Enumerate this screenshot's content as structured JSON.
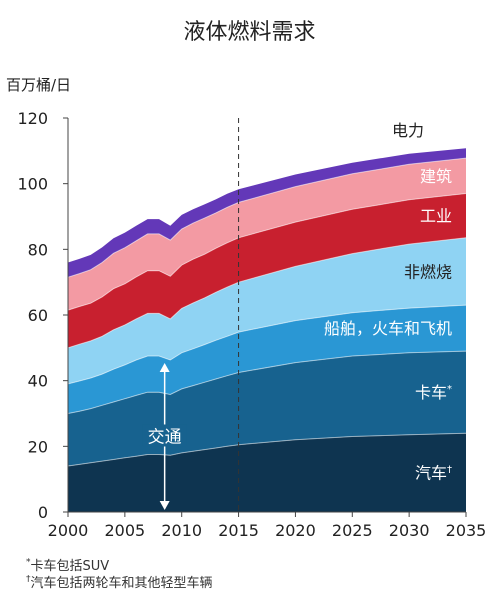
{
  "chart_data": {
    "type": "area",
    "title": "液体燃料需求",
    "ylabel": "百万桶/日",
    "xlabel": "",
    "ylim": [
      0,
      120
    ],
    "xlim": [
      2000,
      2035
    ],
    "x_ticks": [
      2000,
      2005,
      2010,
      2015,
      2020,
      2025,
      2030,
      2035
    ],
    "y_ticks": [
      0,
      20,
      40,
      60,
      80,
      100,
      120
    ],
    "forecast_divider_year": 2015,
    "x": [
      2000,
      2001,
      2002,
      2003,
      2004,
      2005,
      2006,
      2007,
      2008,
      2009,
      2010,
      2011,
      2012,
      2013,
      2014,
      2015,
      2020,
      2025,
      2030,
      2035
    ],
    "series": [
      {
        "name": "汽车",
        "color": "#0e3450",
        "values": [
          14,
          14.5,
          15,
          15.5,
          16,
          16.5,
          17,
          17.5,
          17.5,
          17.3,
          18,
          18.5,
          19,
          19.5,
          20,
          20.5,
          22,
          23,
          23.5,
          24
        ]
      },
      {
        "name": "卡车",
        "color": "#17628f",
        "values": [
          16,
          16.2,
          16.5,
          17,
          17.5,
          18,
          18.5,
          19,
          19,
          18.5,
          19.5,
          20,
          20.5,
          21,
          21.5,
          22,
          23.5,
          24.5,
          25,
          25
        ]
      },
      {
        "name": "船舶，火车和飞机",
        "color": "#2a97d4",
        "values": [
          9,
          9.2,
          9.3,
          9.5,
          10,
          10.3,
          10.8,
          11,
          11,
          10.5,
          11,
          11.2,
          11.5,
          11.8,
          12,
          12.3,
          12.8,
          13.2,
          13.6,
          14
        ]
      },
      {
        "name": "非燃烧",
        "color": "#8fd3f3",
        "values": [
          11,
          11.2,
          11.3,
          11.5,
          12,
          12.2,
          12.5,
          13,
          13,
          12.5,
          13.5,
          14,
          14.2,
          14.6,
          15,
          15.2,
          16.5,
          18,
          19.5,
          20.5
        ]
      },
      {
        "name": "工业",
        "color": "#c8202f",
        "values": [
          11.5,
          11.5,
          11.5,
          12,
          12.5,
          12.5,
          12.8,
          13,
          13,
          13,
          13.2,
          13.3,
          13.3,
          13.4,
          13.5,
          13.5,
          13.5,
          13.5,
          13.5,
          13.5
        ]
      },
      {
        "name": "建筑",
        "color": "#f39aa3",
        "values": [
          10,
          10,
          10.2,
          10.5,
          10.8,
          11,
          11,
          11.2,
          11.2,
          11,
          11,
          11,
          11,
          10.8,
          10.8,
          10.8,
          10.8,
          10.8,
          10.8,
          10.8
        ]
      },
      {
        "name": "电力",
        "color": "#6338b8",
        "values": [
          4.5,
          4.5,
          4.5,
          4.6,
          4.6,
          4.6,
          4.6,
          4.5,
          4.5,
          4.4,
          4.3,
          4.2,
          4.2,
          4.1,
          4.1,
          4,
          3.7,
          3.4,
          3.2,
          3
        ]
      }
    ],
    "annotations": [
      {
        "text": "交通",
        "type": "double-arrow",
        "from": 0,
        "to": 46,
        "year": 2008.5
      }
    ],
    "grid": false,
    "legend": "inline-right"
  },
  "footnotes": {
    "trucks": "卡车包括SUV",
    "cars": "汽车包括两轮车和其他轻型车辆"
  },
  "series_label_marks": {
    "卡车": "*",
    "汽车": "†"
  },
  "colors": {
    "axis": "#444444",
    "series_label_light": "#ffffff",
    "series_label_dark": "#222222"
  }
}
